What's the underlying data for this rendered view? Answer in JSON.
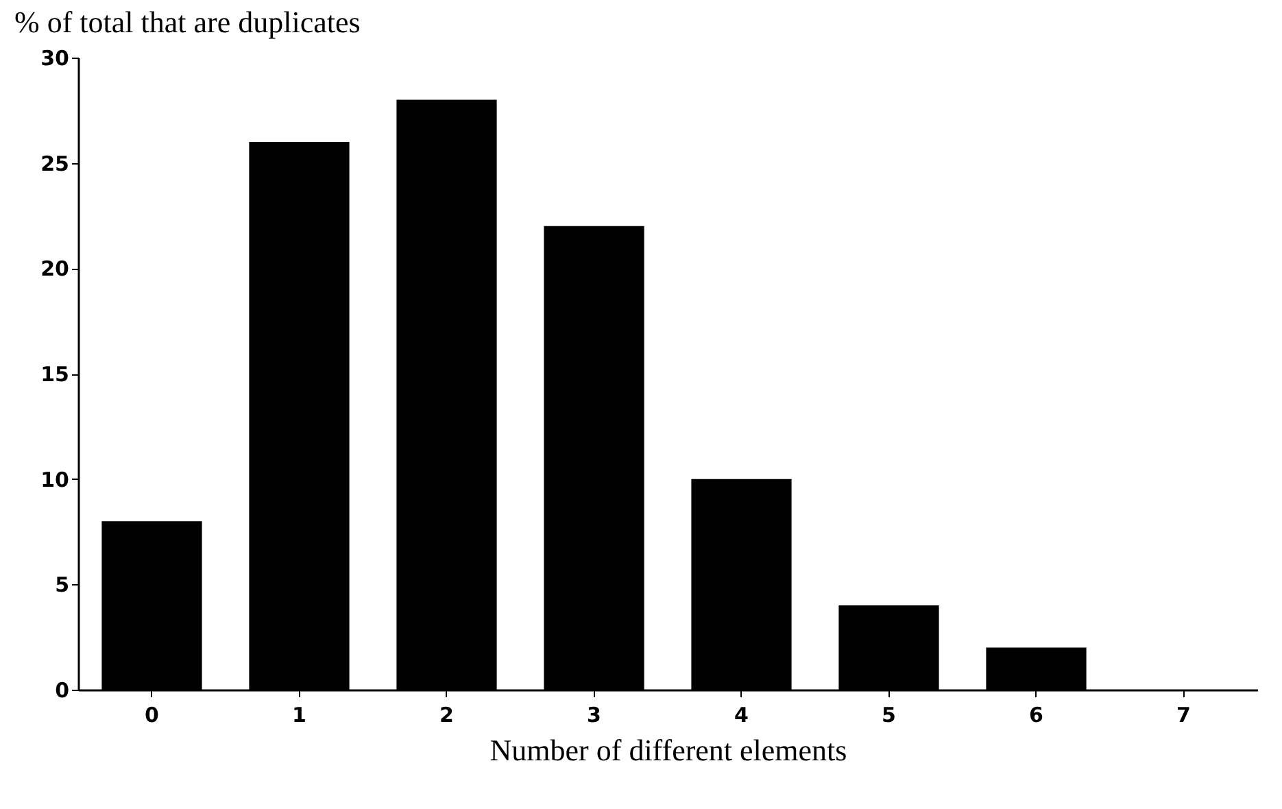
{
  "chart_data": {
    "type": "bar",
    "xlabel": "Number of different elements",
    "ylabel": "% of total that are duplicates",
    "categories": [
      "0",
      "1",
      "2",
      "3",
      "4",
      "5",
      "6",
      "7"
    ],
    "values": [
      8,
      26,
      28,
      22,
      10,
      4,
      2,
      null
    ],
    "color": "#000000",
    "ylim": [
      0,
      30
    ],
    "yticks": [
      0,
      5,
      10,
      15,
      20,
      25,
      30
    ],
    "grid": false
  }
}
